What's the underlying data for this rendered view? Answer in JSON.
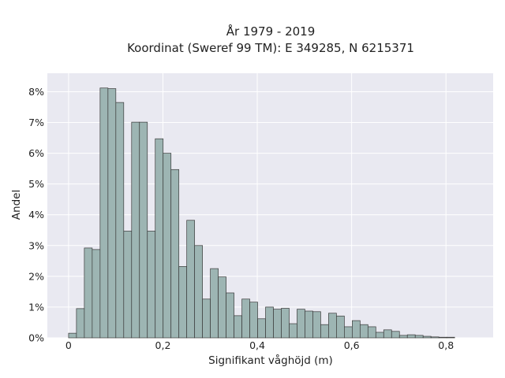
{
  "chart_data": {
    "type": "bar",
    "title_line1": "År 1979 - 2019",
    "title_line2": "Koordinat (Sweref 99 TM): E 349285, N 6215371",
    "xlabel": "Signifikant våghöjd (m)",
    "ylabel": "Andel",
    "xlim": [
      -0.045,
      0.9
    ],
    "ylim": [
      0,
      8.6
    ],
    "x_ticks": [
      0,
      0.2,
      0.4,
      0.6,
      0.8
    ],
    "x_tick_labels": [
      "0",
      "0,2",
      "0,4",
      "0,6",
      "0,8"
    ],
    "y_ticks": [
      0,
      1,
      2,
      3,
      4,
      5,
      6,
      7,
      8
    ],
    "y_tick_labels": [
      "0%",
      "1%",
      "2%",
      "3%",
      "4%",
      "5%",
      "6%",
      "7%",
      "8%"
    ],
    "grid": true,
    "bin_start": 0,
    "bin_width": 0.0167,
    "values": [
      0.15,
      0.95,
      2.92,
      2.87,
      8.12,
      8.1,
      7.65,
      3.47,
      7.01,
      7.01,
      3.47,
      6.47,
      6.0,
      5.47,
      2.32,
      3.82,
      3.0,
      1.26,
      2.25,
      1.98,
      1.46,
      0.72,
      1.26,
      1.16,
      0.62,
      1.0,
      0.93,
      0.96,
      0.46,
      0.93,
      0.87,
      0.85,
      0.43,
      0.8,
      0.71,
      0.36,
      0.56,
      0.43,
      0.36,
      0.18,
      0.26,
      0.21,
      0.08,
      0.1,
      0.08,
      0.05,
      0.03,
      0.02,
      0.02
    ]
  }
}
